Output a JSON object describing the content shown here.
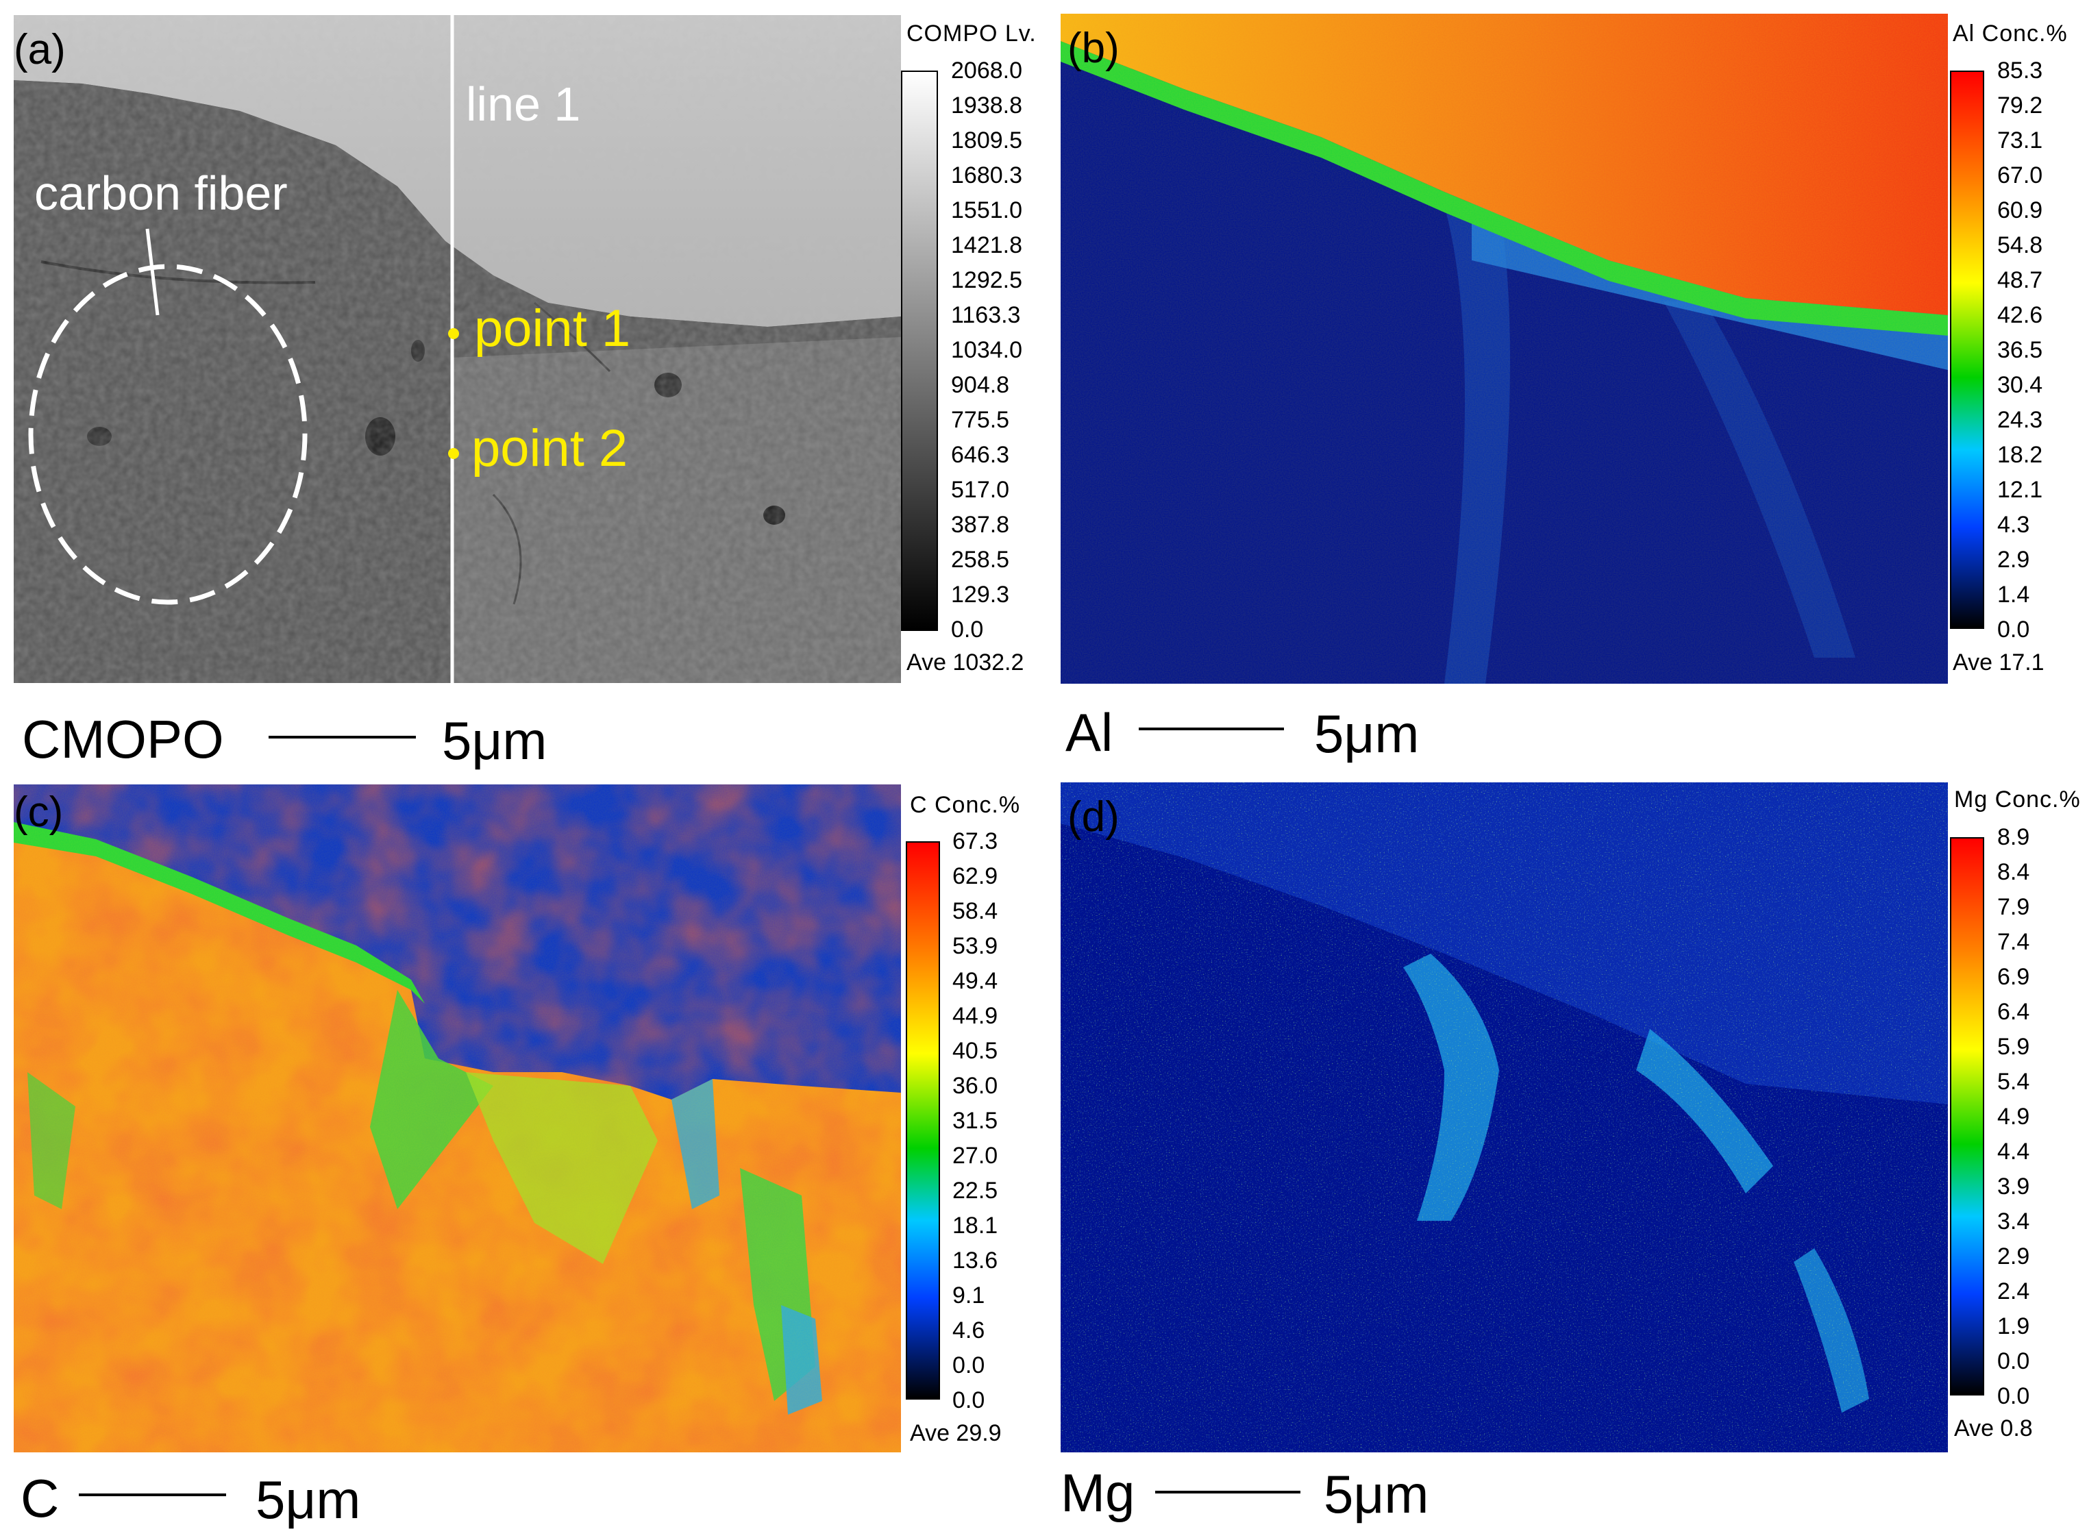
{
  "panels": {
    "a": {
      "letter": "(a)",
      "overlay": {
        "line_label": "line 1",
        "fiber_label": "carbon fiber",
        "point1_label": "point 1",
        "point2_label": "point 2"
      },
      "colorbar": {
        "title": "COMPO  Lv.",
        "ticks": [
          "2068.0",
          "1938.8",
          "1809.5",
          "1680.3",
          "1551.0",
          "1421.8",
          "1292.5",
          "1163.3",
          "1034.0",
          "904.8",
          "775.5",
          "646.3",
          "517.0",
          "387.8",
          "258.5",
          "129.3",
          "0.0"
        ],
        "ave": "Ave 1032.2"
      },
      "caption": {
        "element": "CMOPO",
        "scale": "5μm"
      }
    },
    "b": {
      "letter": "(b)",
      "colorbar": {
        "title": "Al  Conc.%",
        "ticks": [
          "85.3",
          "79.2",
          "73.1",
          "67.0",
          "60.9",
          "54.8",
          "48.7",
          "42.6",
          "36.5",
          "30.4",
          "24.3",
          "18.2",
          "12.1",
          "4.3",
          "2.9",
          "1.4",
          "0.0"
        ],
        "ave": "Ave 17.1"
      },
      "caption": {
        "element": "Al",
        "scale": "5μm"
      }
    },
    "c": {
      "letter": "(c)",
      "colorbar": {
        "title": "C   Conc.%",
        "ticks": [
          "67.3",
          "62.9",
          "58.4",
          "53.9",
          "49.4",
          "44.9",
          "40.5",
          "36.0",
          "31.5",
          "27.0",
          "22.5",
          "18.1",
          "13.6",
          "9.1",
          "4.6",
          "0.0",
          "0.0"
        ],
        "ave": "Ave 29.9"
      },
      "caption": {
        "element": "C",
        "scale": "5μm"
      }
    },
    "d": {
      "letter": "(d)",
      "colorbar": {
        "title": "Mg  Conc.%",
        "ticks": [
          "8.9",
          "8.4",
          "7.9",
          "7.4",
          "6.9",
          "6.4",
          "5.9",
          "5.4",
          "4.9",
          "4.4",
          "3.9",
          "3.4",
          "2.9",
          "2.4",
          "1.9",
          "0.0",
          "0.0"
        ],
        "ave": "Ave 0.8"
      },
      "caption": {
        "element": "Mg",
        "scale": "5μm"
      }
    }
  },
  "colors": {
    "overlay_white": "#ffffff",
    "overlay_yellow": "#ffee00",
    "map_background_blue": "#00128f",
    "map_high_red": "#f23a14"
  }
}
